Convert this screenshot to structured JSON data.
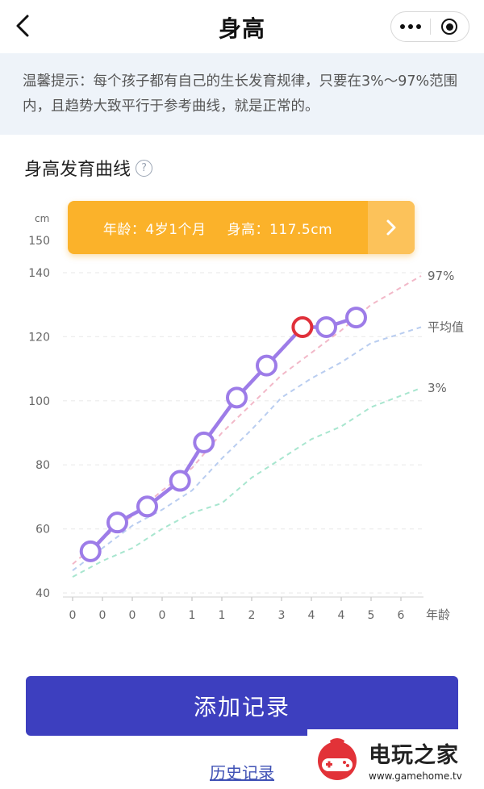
{
  "nav": {
    "title": "身高",
    "back_icon": "back-arrow-icon",
    "more_icon": "more-dots-icon",
    "close_icon": "target-circle-icon"
  },
  "tip": {
    "text": "温馨提示：每个孩子都有自己的生长发育规律，只要在3%～97%范围内，且趋势大致平行于参考曲线，就是正常的。"
  },
  "section": {
    "title": "身高发育曲线",
    "help_icon": "question-circle-icon",
    "help_glyph": "?"
  },
  "banner": {
    "age_text": "年龄：4岁1个月",
    "height_text": "身高：117.5cm",
    "arrow_icon": "chevron-right-icon"
  },
  "colors": {
    "accent_purple": "#9d7ce8",
    "highlight_red": "#e0303a",
    "banner_orange": "#fbb22a",
    "button_blue": "#3d3fbf",
    "curve_97": "#f2b8c8",
    "curve_avg": "#b9cdf0",
    "curve_3": "#a8e6cf"
  },
  "chart_data": {
    "type": "line",
    "y_unit": "cm",
    "y_ticks": [
      "150",
      "140",
      "120",
      "100",
      "80",
      "60",
      "40"
    ],
    "ylim": [
      40,
      150
    ],
    "x_ticks": [
      "0",
      "0",
      "0",
      "0",
      "1",
      "1",
      "2",
      "3",
      "4",
      "4",
      "5",
      "6"
    ],
    "x_axis_label": "年龄",
    "grid": true,
    "reference_curves": [
      {
        "name": "97%",
        "x": [
          0,
          1,
          2,
          3,
          4,
          5,
          6,
          7,
          8,
          9,
          10,
          11
        ],
        "values": [
          49,
          57,
          64,
          72,
          79,
          90,
          99,
          108,
          115,
          122,
          130,
          139
        ]
      },
      {
        "name": "平均值",
        "x": [
          0,
          1,
          2,
          3,
          4,
          5,
          6,
          7,
          8,
          9,
          10,
          11
        ],
        "values": [
          47,
          54,
          61,
          66,
          72,
          82,
          91,
          101,
          107,
          112,
          118,
          123
        ]
      },
      {
        "name": "3%",
        "x": [
          0,
          1,
          2,
          3,
          4,
          5,
          6,
          7,
          8,
          9,
          10,
          11
        ],
        "values": [
          45,
          50,
          54,
          60,
          65,
          68,
          76,
          82,
          88,
          92,
          98,
          104
        ]
      }
    ],
    "series": [
      {
        "x": [
          0.6,
          1.5,
          2.5,
          3.6,
          4.4,
          5.5,
          6.5,
          7.7,
          8.5,
          9.5
        ],
        "values": [
          53,
          62,
          67,
          75,
          87,
          101,
          111,
          123,
          123,
          126
        ],
        "highlighted_index": 7
      }
    ]
  },
  "actions": {
    "add_record": "添加记录",
    "history": "历史记录"
  },
  "watermark": {
    "name": "电玩之家",
    "url": "www.gamehome.tv"
  }
}
